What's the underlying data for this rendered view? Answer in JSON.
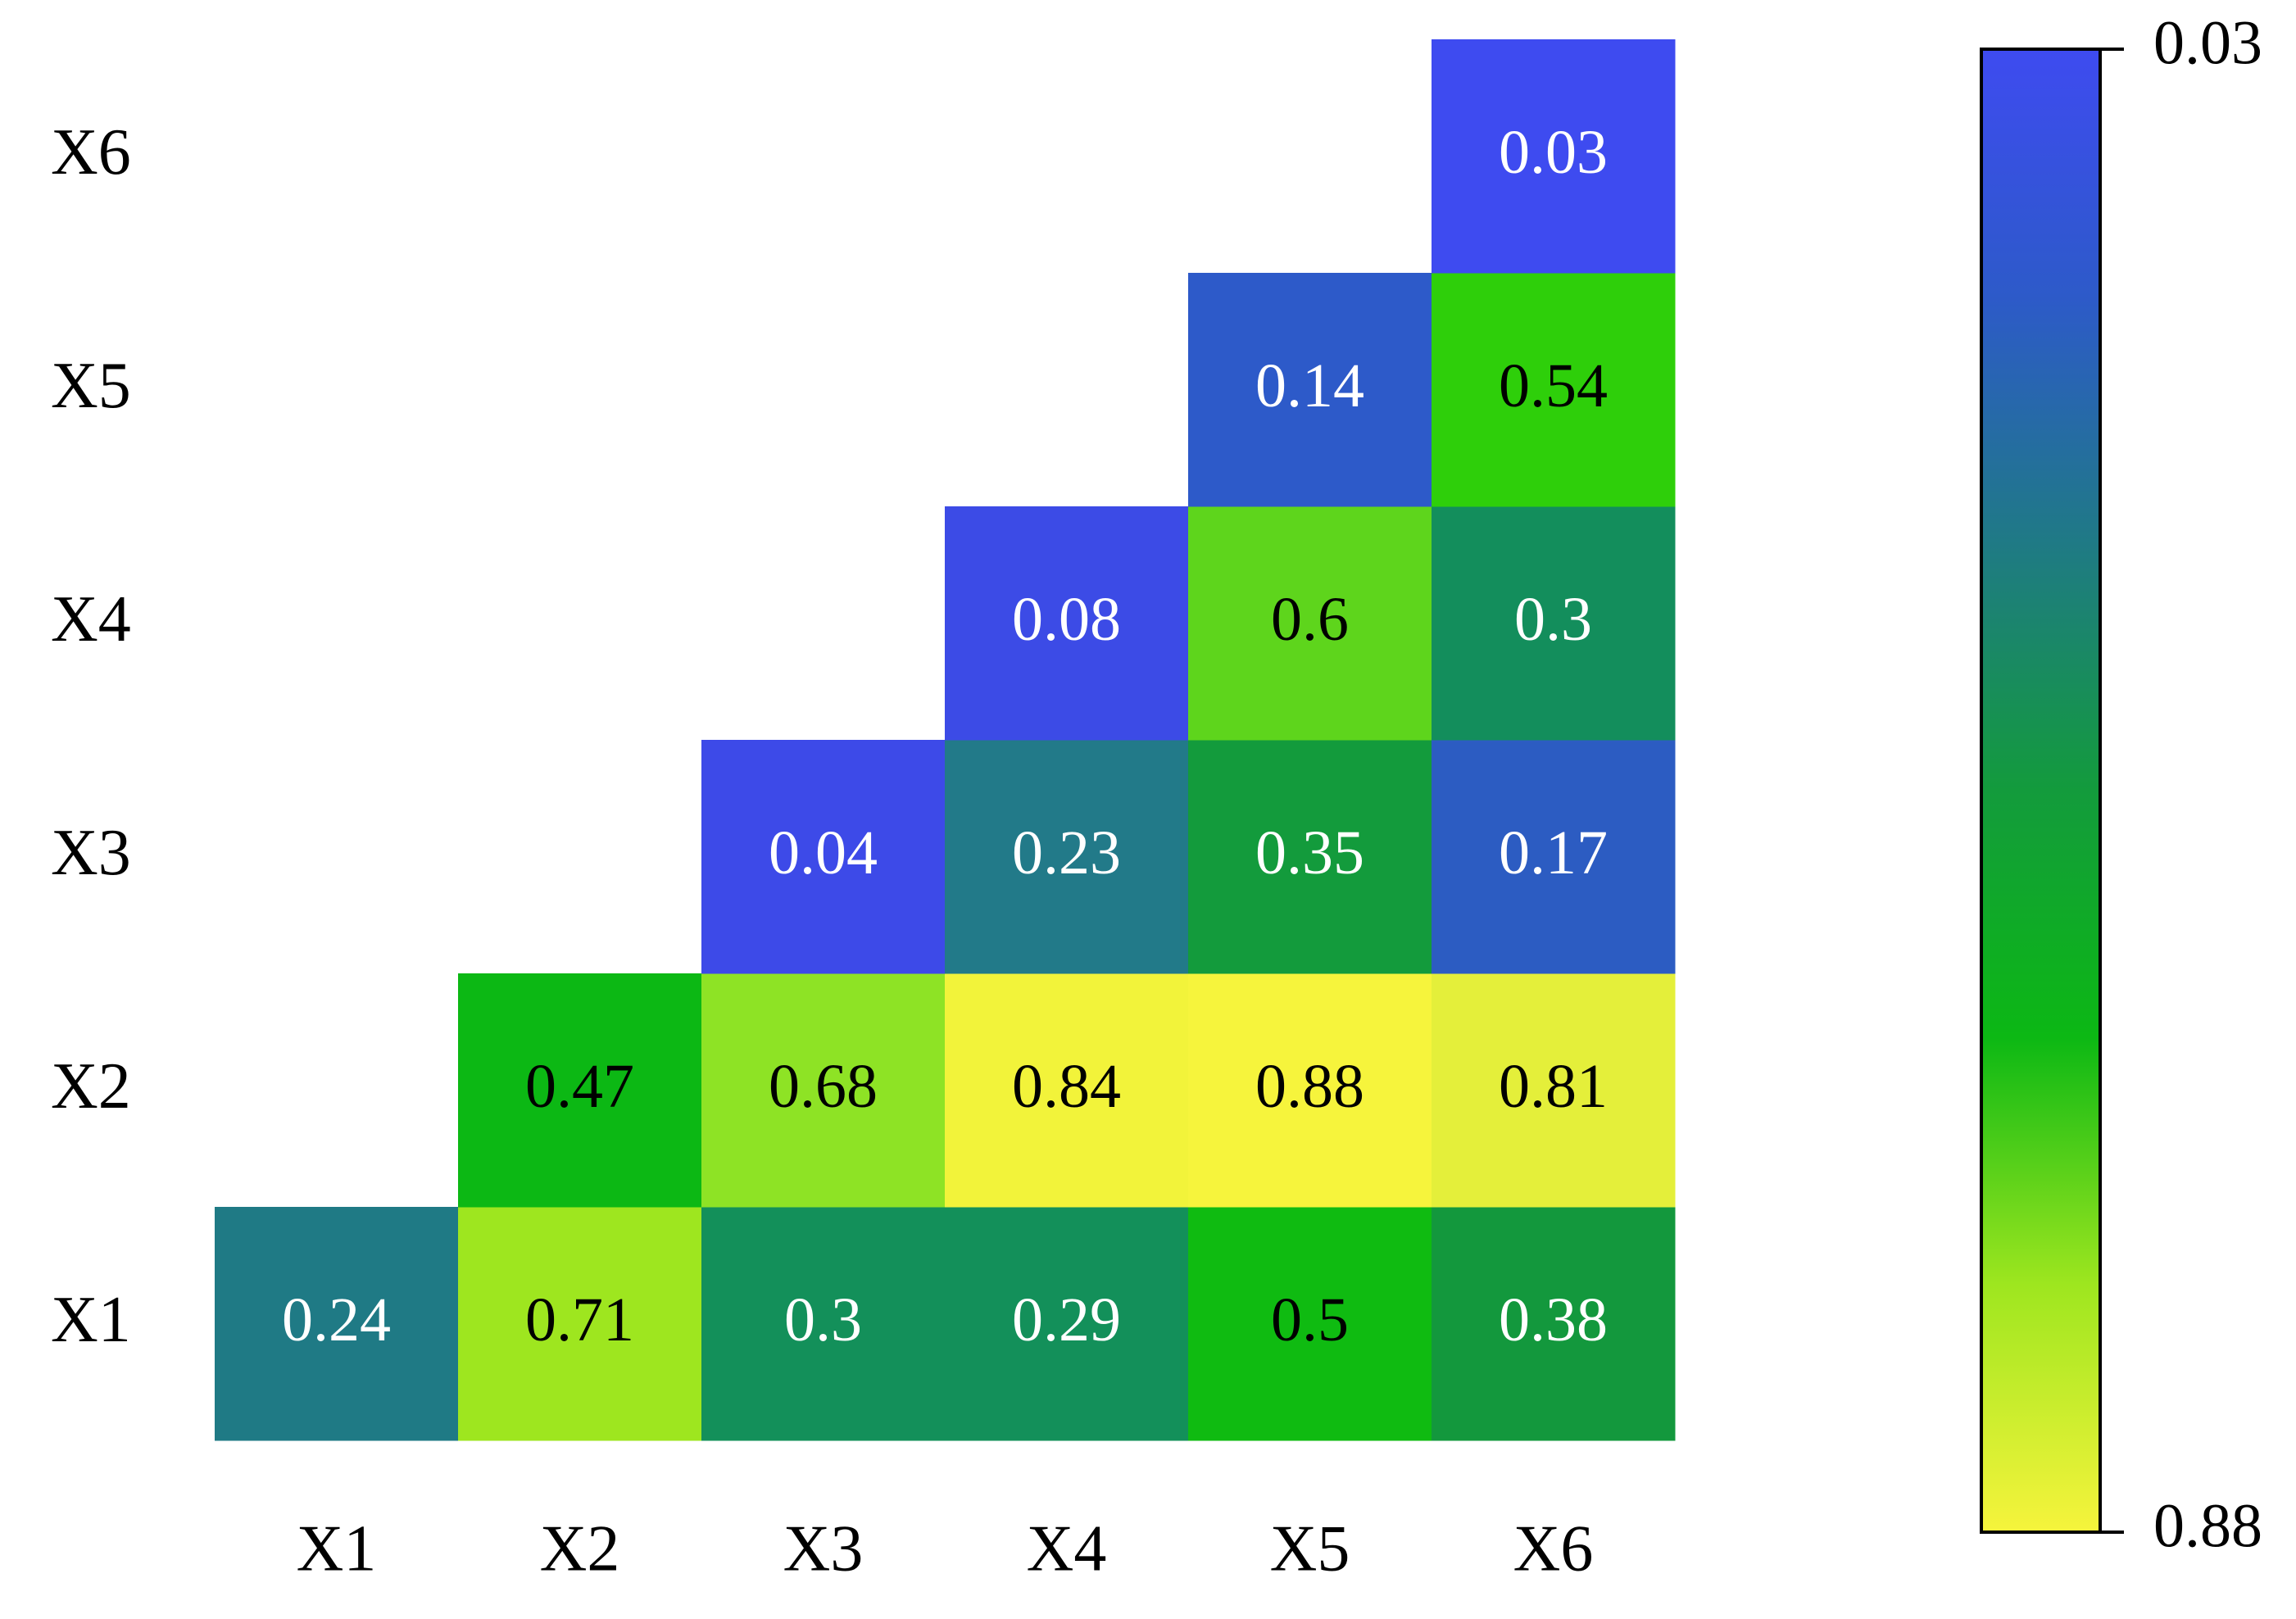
{
  "chart_data": {
    "type": "heatmap",
    "title": "",
    "xlabel": "",
    "ylabel": "",
    "x_categories": [
      "X1",
      "X2",
      "X3",
      "X4",
      "X5",
      "X6"
    ],
    "y_categories": [
      "X1",
      "X2",
      "X3",
      "X4",
      "X5",
      "X6"
    ],
    "cells": [
      {
        "x": "X1",
        "y": "X1",
        "value": 0.24,
        "label": "0.24",
        "color": "#1f7a85"
      },
      {
        "x": "X2",
        "y": "X1",
        "value": 0.71,
        "label": "0.71",
        "color": "#9ee61f"
      },
      {
        "x": "X3",
        "y": "X1",
        "value": 0.3,
        "label": "0.3",
        "color": "#13905a"
      },
      {
        "x": "X4",
        "y": "X1",
        "value": 0.29,
        "label": "0.29",
        "color": "#13905a"
      },
      {
        "x": "X5",
        "y": "X1",
        "value": 0.5,
        "label": "0.5",
        "color": "#0fbb11"
      },
      {
        "x": "X6",
        "y": "X1",
        "value": 0.38,
        "label": "0.38",
        "color": "#13983d"
      },
      {
        "x": "X2",
        "y": "X2",
        "value": 0.47,
        "label": "0.47",
        "color": "#0cb814"
      },
      {
        "x": "X3",
        "y": "X2",
        "value": 0.68,
        "label": "0.68",
        "color": "#8ee325"
      },
      {
        "x": "X4",
        "y": "X2",
        "value": 0.84,
        "label": "0.84",
        "color": "#f2f33a"
      },
      {
        "x": "X5",
        "y": "X2",
        "value": 0.88,
        "label": "0.88",
        "color": "#f6f43c"
      },
      {
        "x": "X6",
        "y": "X2",
        "value": 0.81,
        "label": "0.81",
        "color": "#e4ef3a"
      },
      {
        "x": "X3",
        "y": "X3",
        "value": 0.04,
        "label": "0.04",
        "color": "#3d4ae8"
      },
      {
        "x": "X4",
        "y": "X3",
        "value": 0.23,
        "label": "0.23",
        "color": "#227a89"
      },
      {
        "x": "X5",
        "y": "X3",
        "value": 0.35,
        "label": "0.35",
        "color": "#139b3c"
      },
      {
        "x": "X6",
        "y": "X3",
        "value": 0.17,
        "label": "0.17",
        "color": "#2c5cc2"
      },
      {
        "x": "X4",
        "y": "X4",
        "value": 0.08,
        "label": "0.08",
        "color": "#3c4be6"
      },
      {
        "x": "X5",
        "y": "X4",
        "value": 0.6,
        "label": "0.6",
        "color": "#5ed51c"
      },
      {
        "x": "X6",
        "y": "X4",
        "value": 0.3,
        "label": "0.3",
        "color": "#138e5c"
      },
      {
        "x": "X5",
        "y": "X5",
        "value": 0.14,
        "label": "0.14",
        "color": "#2d5ac9"
      },
      {
        "x": "X6",
        "y": "X5",
        "value": 0.54,
        "label": "0.54",
        "color": "#2ecf0a"
      },
      {
        "x": "X6",
        "y": "X6",
        "value": 0.03,
        "label": "0.03",
        "color": "#3e4bf0"
      }
    ],
    "colorbar": {
      "min": 0.03,
      "max": 0.88,
      "min_label": "0.03",
      "max_label": "0.88",
      "orientation": "vertical",
      "placement": "right",
      "direction": "min-top",
      "stops": [
        "#3e4bf0",
        "#2d5ac9",
        "#1f7a85",
        "#139b3c",
        "#0cb814",
        "#9ee61f",
        "#f6f43c"
      ]
    },
    "grid": false,
    "legend": "colorbar-right"
  }
}
